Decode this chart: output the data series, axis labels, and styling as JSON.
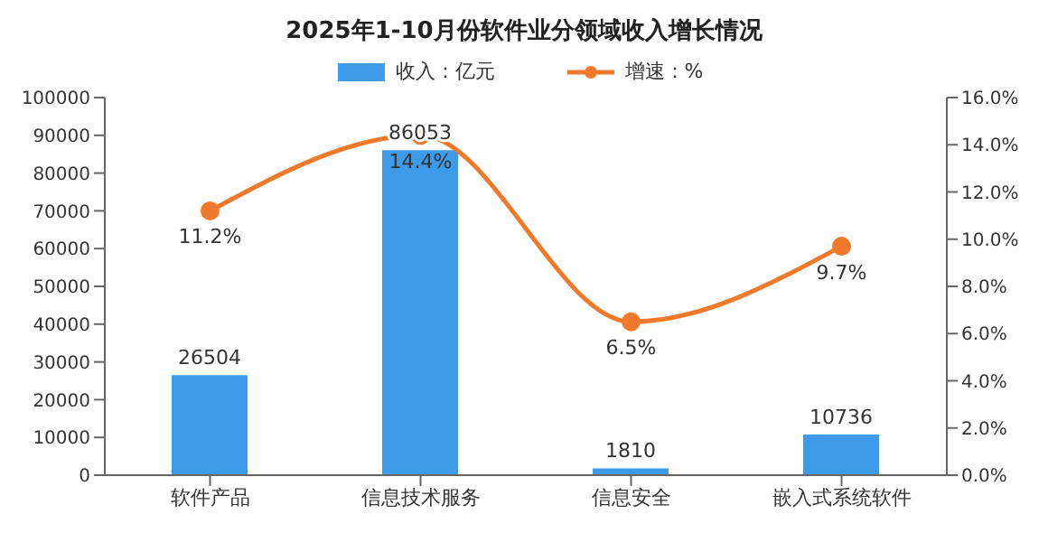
{
  "chart_data": {
    "type": "bar",
    "title": "2025年1-10月份软件业分领域收入增长情况",
    "categories": [
      "软件产品",
      "信息技术服务",
      "信息安全",
      "嵌入式系统软件"
    ],
    "series": [
      {
        "name": "收入：亿元",
        "color": "#3d9be9",
        "values": [
          26504,
          86053,
          1810,
          10736
        ],
        "value_labels": [
          "26504",
          "86053",
          "1810",
          "10736"
        ]
      },
      {
        "name": "增速：%",
        "type": "line",
        "axis": "y2",
        "color": "#f07a2b",
        "values": [
          11.2,
          14.4,
          6.5,
          9.7
        ],
        "value_labels": [
          "11.2%",
          "14.4%",
          "6.5%",
          "9.7%"
        ]
      }
    ],
    "ylim": [
      0,
      100000
    ],
    "yticks": [
      0,
      10000,
      20000,
      30000,
      40000,
      50000,
      60000,
      70000,
      80000,
      90000,
      100000
    ],
    "y2lim": [
      0,
      16
    ],
    "y2ticks": [
      {
        "value": 0,
        "label": "0.0%"
      },
      {
        "value": 2,
        "label": "2.0%"
      },
      {
        "value": 4,
        "label": "4.0%"
      },
      {
        "value": 6,
        "label": "6.0%"
      },
      {
        "value": 8,
        "label": "8.0%"
      },
      {
        "value": 10,
        "label": "10.0%"
      },
      {
        "value": 12,
        "label": "12.0%"
      },
      {
        "value": 14,
        "label": "14.0%"
      },
      {
        "value": 16,
        "label": "16.0%"
      }
    ],
    "legend": "top",
    "marker": "circle",
    "grid": false
  }
}
